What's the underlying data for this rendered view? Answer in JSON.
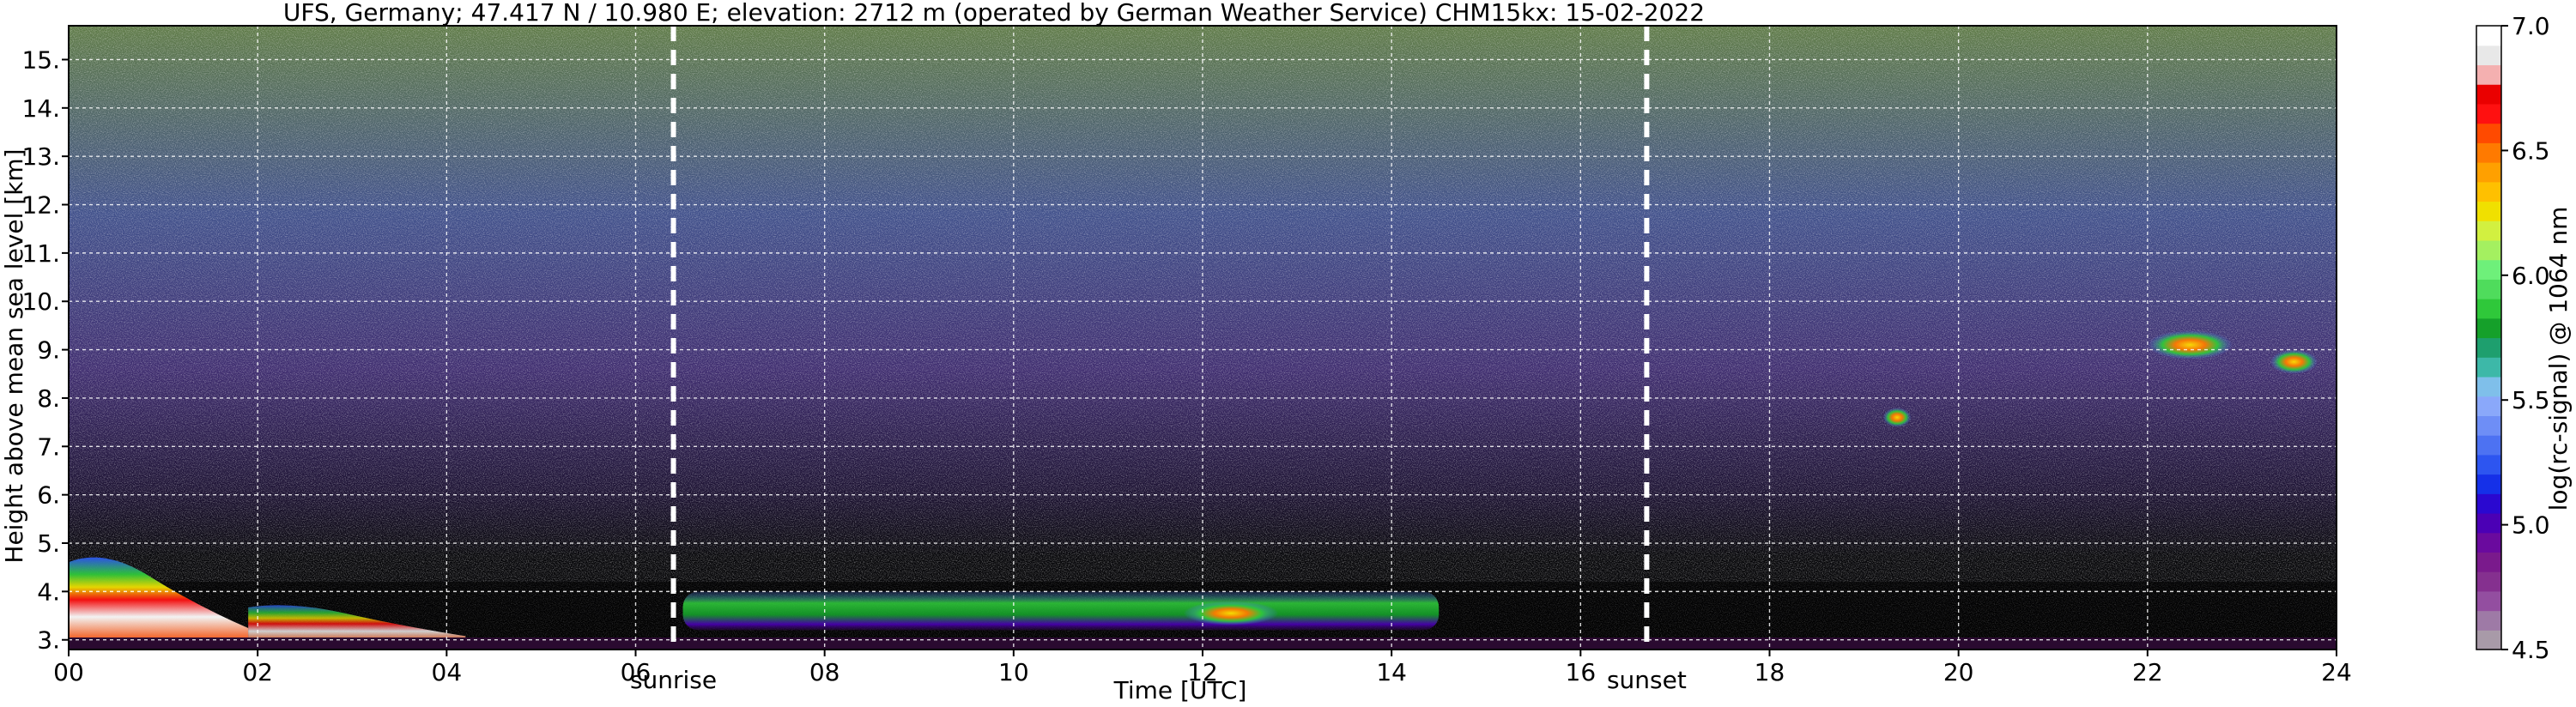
{
  "chart_data": {
    "type": "heatmap",
    "title": "UFS, Germany; 47.417 N / 10.980 E; elevation: 2712 m  (operated by German Weather Service)    CHM15kx: 15-02-2022",
    "xlabel": "Time [UTC]",
    "ylabel": "Height above mean sea level [km]",
    "xlim": [
      0,
      24
    ],
    "ylim": [
      2.8,
      15.7
    ],
    "x_ticks": [
      0,
      2,
      4,
      6,
      8,
      10,
      12,
      14,
      16,
      18,
      20,
      22,
      24
    ],
    "x_tick_labels": [
      "00",
      "02",
      "04",
      "06",
      "08",
      "10",
      "12",
      "14",
      "16",
      "18",
      "20",
      "22",
      "24"
    ],
    "y_ticks": [
      3,
      4,
      5,
      6,
      7,
      8,
      9,
      10,
      11,
      12,
      13,
      14,
      15
    ],
    "y_tick_labels": [
      "3.",
      "4.",
      "5.",
      "6.",
      "7.",
      "8.",
      "9.",
      "10.",
      "11.",
      "12.",
      "13.",
      "14.",
      "15."
    ],
    "grid": true,
    "colorbar": {
      "label": "log(rc-signal) @ 1064 nm",
      "range": [
        4.5,
        7.0
      ],
      "ticks": [
        4.5,
        5.0,
        5.5,
        6.0,
        6.5,
        7.0
      ],
      "tick_labels": [
        "4.5",
        "5.0",
        "5.5",
        "6.0",
        "6.5",
        "7.0"
      ],
      "colors": [
        "#a89aa8",
        "#9e7aa6",
        "#934ea0",
        "#85308f",
        "#7a1a8c",
        "#6a0a9e",
        "#4b00b5",
        "#2a08d0",
        "#1530e8",
        "#2d55f0",
        "#4d72f2",
        "#6e8ef6",
        "#8aa8fa",
        "#7fbfea",
        "#3db8a8",
        "#1e9f6e",
        "#15a02a",
        "#2fc83a",
        "#4fdc5c",
        "#6ef07a",
        "#a4f060",
        "#d2f040",
        "#f0e000",
        "#ffc000",
        "#ffa000",
        "#ff7a00",
        "#ff4a00",
        "#ff1010",
        "#ea0000",
        "#f4b0b0",
        "#e8e8e8",
        "#ffffff"
      ]
    },
    "markers": [
      {
        "label": "sunrise",
        "x": 6.4
      },
      {
        "label": "sunset",
        "x": 16.7
      }
    ],
    "features": [
      {
        "x0": 0.0,
        "x1": 1.9,
        "y0": 2.95,
        "y1": 4.9,
        "value": 6.3
      },
      {
        "x0": 1.9,
        "x1": 4.2,
        "y0": 2.95,
        "y1": 3.8,
        "value": 5.3
      },
      {
        "x0": 6.5,
        "x1": 14.5,
        "y0": 3.2,
        "y1": 4.0,
        "value": 5.7
      },
      {
        "x0": 11.8,
        "x1": 12.8,
        "y0": 3.3,
        "y1": 3.8,
        "value": 6.3
      },
      {
        "x0": 19.2,
        "x1": 19.5,
        "y0": 7.4,
        "y1": 7.8,
        "value": 5.9
      },
      {
        "x0": 22.0,
        "x1": 22.9,
        "y0": 8.8,
        "y1": 9.4,
        "value": 6.3
      },
      {
        "x0": 23.3,
        "x1": 23.8,
        "y0": 8.5,
        "y1": 9.0,
        "value": 6.3
      }
    ]
  }
}
